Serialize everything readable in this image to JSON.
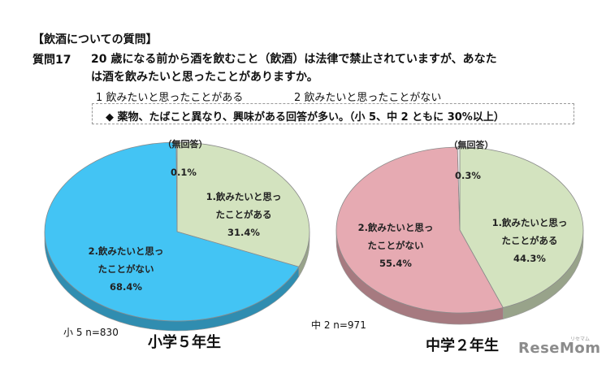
{
  "header": {
    "section_title": "【飲酒についての質問】",
    "question_number": "質問17",
    "question_line1": "20 歳になる前から酒を飲むこと（飲酒）は法律で禁止されていますが、あなた",
    "question_line2": "は酒を飲みたいと思ったことがありますか。",
    "option1": "1  飲みたいと思ったことがある",
    "option2": "2  飲みたいと思ったことがない",
    "note": "◆  薬物、たばこと異なり、興味がある回答が多い。（小 5、中 2 ともに 30%以上）"
  },
  "chart_data": [
    {
      "type": "pie",
      "title": "小学５年生",
      "sample": "小 5 n=830",
      "slices": [
        {
          "label": "1.飲みたいと思ったことがある",
          "label_lines": [
            "1.飲みたいと思っ",
            "たことがある"
          ],
          "value": 31.4,
          "display": "31.4%",
          "color": "#d3e3bf"
        },
        {
          "label": "2.飲みたいと思ったことがない",
          "label_lines": [
            "2.飲みたいと思っ",
            "たことがない"
          ],
          "value": 68.4,
          "display": "68.4%",
          "color": "#43c4f4"
        },
        {
          "label": "（無回答）",
          "label_lines": [
            "（無回答）"
          ],
          "value": 0.1,
          "display": "0.1%",
          "color": "#f2f2f2"
        }
      ]
    },
    {
      "type": "pie",
      "title": "中学２年生",
      "sample": "中 2 n=971",
      "slices": [
        {
          "label": "1.飲みたいと思ったことがある",
          "label_lines": [
            "1.飲みたいと思っ",
            "たことがある"
          ],
          "value": 44.3,
          "display": "44.3%",
          "color": "#d3e3bf"
        },
        {
          "label": "2.飲みたいと思ったことがない",
          "label_lines": [
            "2.飲みたいと思っ",
            "たことがない"
          ],
          "value": 55.4,
          "display": "55.4%",
          "color": "#e6aab2"
        },
        {
          "label": "（無回答）",
          "label_lines": [
            "（無回答）"
          ],
          "value": 0.3,
          "display": "0.3%",
          "color": "#f2f2f2"
        }
      ]
    }
  ],
  "watermark": {
    "text": "ReseMom",
    "small": "リセマム"
  }
}
